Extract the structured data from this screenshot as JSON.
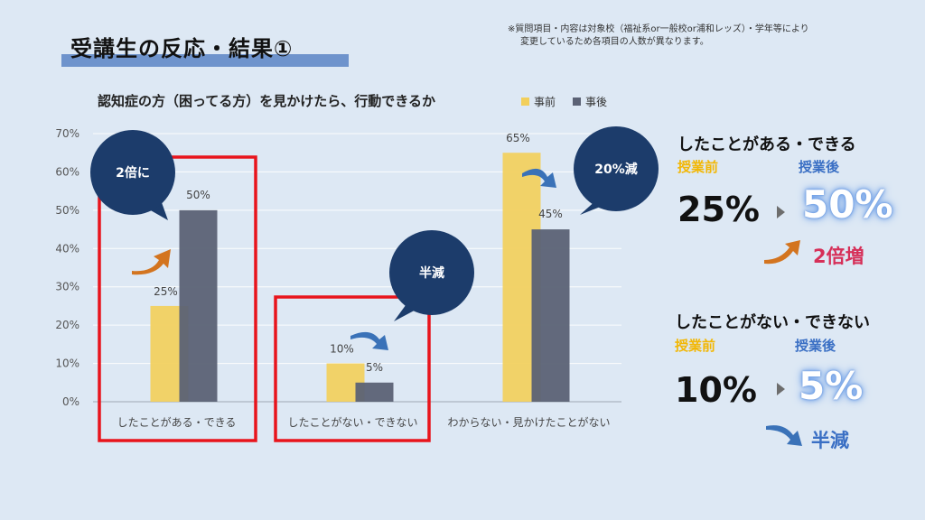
{
  "slide": {
    "title": "受講生の反応・結果①",
    "note_line1": "※質問項目・内容は対象校（福祉系or一般校or浦和レッズ）・学年等により",
    "note_line2": "変更しているため各項目の人数が異なります。"
  },
  "chart_data": {
    "type": "bar",
    "title": "認知症の方（困ってる方）を見かけたら、行動できるか",
    "categories": [
      "したことがある・できる",
      "したことがない・できない",
      "わからない・見かけたことがない"
    ],
    "series": [
      {
        "name": "事前",
        "values": [
          25,
          10,
          65
        ],
        "color": "#f2cf5b"
      },
      {
        "name": "事後",
        "values": [
          50,
          5,
          45
        ],
        "color": "#5b6275"
      }
    ],
    "data_labels": [
      [
        "25%",
        "10%",
        "65%"
      ],
      [
        "50%",
        "5%",
        "45%"
      ]
    ],
    "y_ticks": [
      "0%",
      "10%",
      "20%",
      "30%",
      "40%",
      "50%",
      "60%",
      "70%"
    ],
    "ylim": [
      0,
      70
    ],
    "legend_position": "top-right",
    "grid": true,
    "callouts": [
      "2倍に",
      "半減",
      "20%減"
    ]
  },
  "panel1": {
    "heading": "したことがある・できる",
    "before_label": "授業前",
    "after_label": "授業後",
    "before_value": "25%",
    "after_value": "50%",
    "result": "2倍増"
  },
  "panel2": {
    "heading": "したことがない・できない",
    "before_label": "授業前",
    "after_label": "授業後",
    "before_value": "10%",
    "after_value": "5%",
    "result": "半減"
  },
  "colors": {
    "background": "#dde8f4",
    "highlight_box": "#e8141c",
    "bubble": "#1c3c6b",
    "arrow_orange": "#d3741f",
    "arrow_blue": "#3a72b8"
  }
}
